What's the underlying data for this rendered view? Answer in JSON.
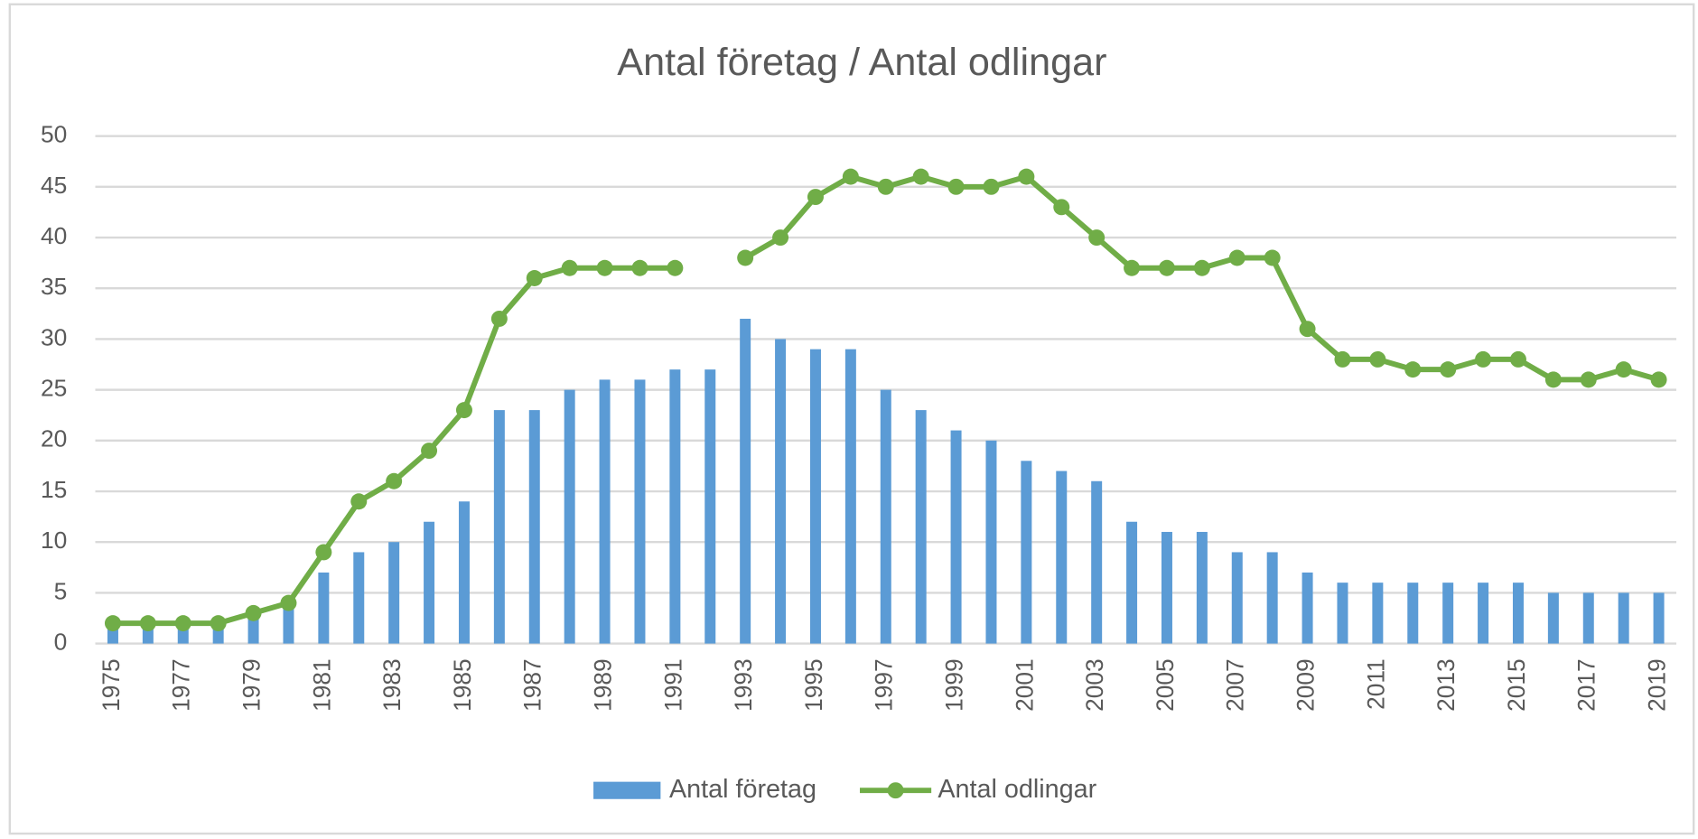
{
  "chart_data": {
    "type": "bar-line",
    "title": "Antal företag / Antal odlingar",
    "categories": [
      1975,
      null,
      1977,
      null,
      1979,
      null,
      1981,
      null,
      1983,
      null,
      1985,
      null,
      1987,
      null,
      1989,
      null,
      1991,
      null,
      1993,
      null,
      1995,
      null,
      1997,
      null,
      1999,
      null,
      2001,
      null,
      2003,
      null,
      2005,
      null,
      2007,
      null,
      2009,
      null,
      2011,
      null,
      2013,
      null,
      2015,
      null,
      2017,
      null,
      2019
    ],
    "series": [
      {
        "name": "Antal företag",
        "type": "bar",
        "color": "#5b9bd5",
        "values": [
          2,
          2,
          2,
          2,
          3,
          4,
          7,
          9,
          10,
          12,
          14,
          23,
          23,
          25,
          26,
          26,
          27,
          27,
          32,
          30,
          29,
          29,
          25,
          23,
          21,
          20,
          18,
          17,
          16,
          12,
          11,
          11,
          9,
          9,
          7,
          6,
          6,
          6,
          6,
          6,
          6,
          5,
          5,
          5,
          5
        ]
      },
      {
        "name": "Antal odlingar",
        "type": "line",
        "color": "#70ad47",
        "values": [
          2,
          2,
          2,
          2,
          3,
          4,
          9,
          14,
          16,
          19,
          23,
          32,
          36,
          37,
          37,
          37,
          37,
          null,
          38,
          40,
          44,
          46,
          45,
          46,
          45,
          45,
          46,
          43,
          40,
          37,
          37,
          37,
          38,
          38,
          31,
          28,
          28,
          27,
          27,
          28,
          28,
          26,
          26,
          27,
          26
        ]
      }
    ],
    "ylim": [
      0,
      50
    ],
    "yticks": [
      0,
      5,
      10,
      15,
      20,
      25,
      30,
      35,
      40,
      45,
      50
    ],
    "grid": true,
    "legend": "bottom"
  }
}
